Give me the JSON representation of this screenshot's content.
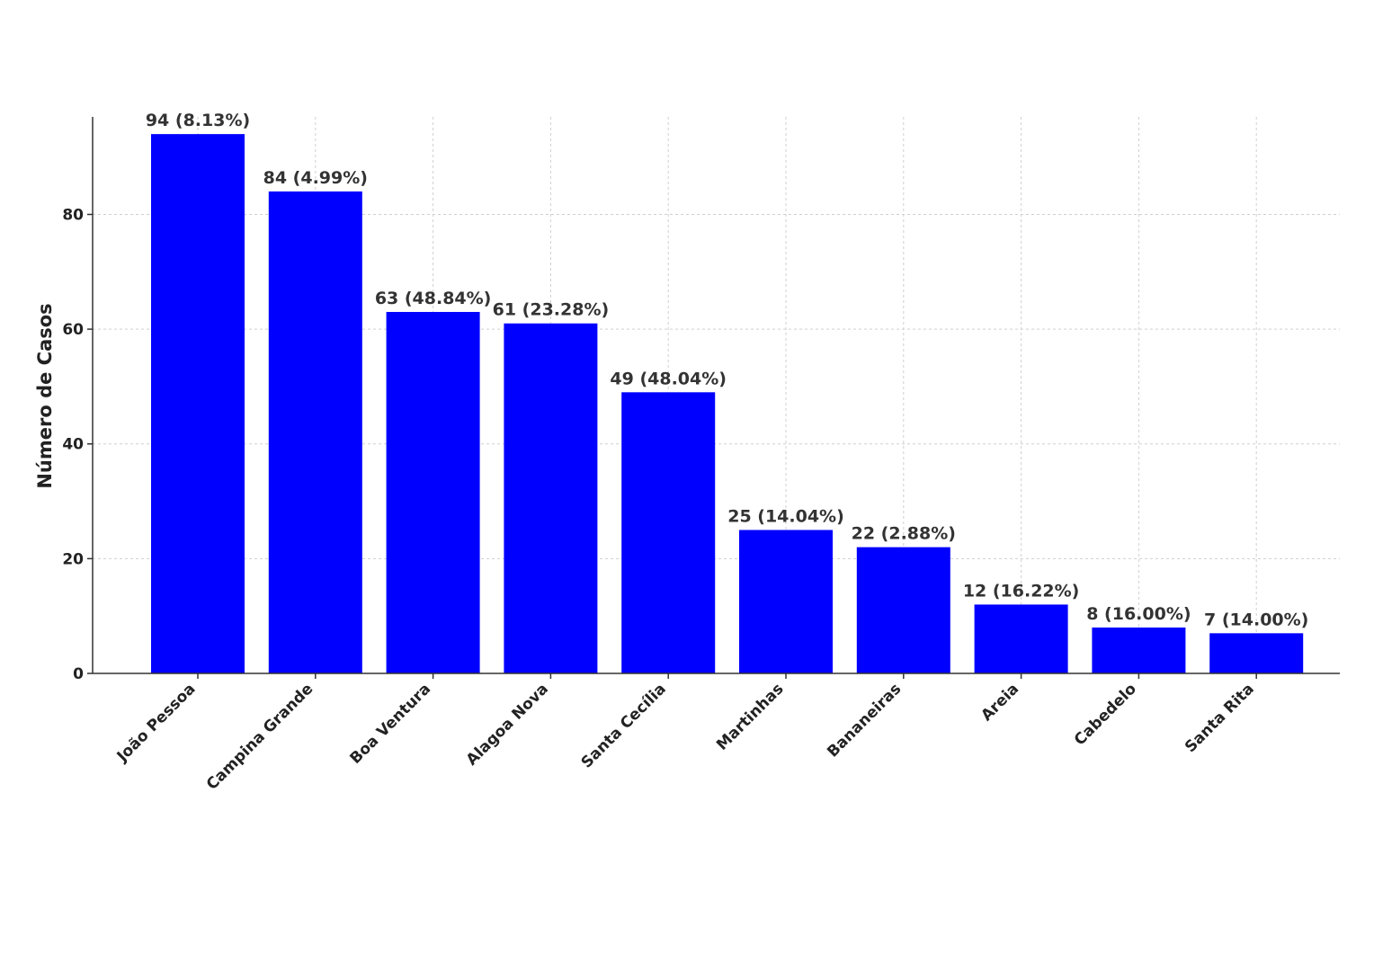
{
  "chart_data": {
    "type": "bar",
    "categories": [
      "João Pessoa",
      "Campina Grande",
      "Boa Ventura",
      "Alagoa Nova",
      "Santa Cecília",
      "Martinhas",
      "Bananeiras",
      "Areia",
      "Cabedelo",
      "Santa Rita"
    ],
    "values": [
      94,
      84,
      63,
      61,
      49,
      25,
      22,
      12,
      8,
      7
    ],
    "data_labels": [
      "94 (8.13%)",
      "84 (4.99%)",
      "63 (48.84%)",
      "61 (23.28%)",
      "49 (48.04%)",
      "25 (14.04%)",
      "22 (2.88%)",
      "12 (16.22%)",
      "8 (16.00%)",
      "7 (14.00%)"
    ],
    "ylabel": "Número de Casos",
    "xlabel": "",
    "title": "",
    "ylim": [
      0,
      97
    ],
    "yticks": [
      0,
      20,
      40,
      60,
      80
    ],
    "grid": true,
    "bar_color": "#0000ff"
  }
}
